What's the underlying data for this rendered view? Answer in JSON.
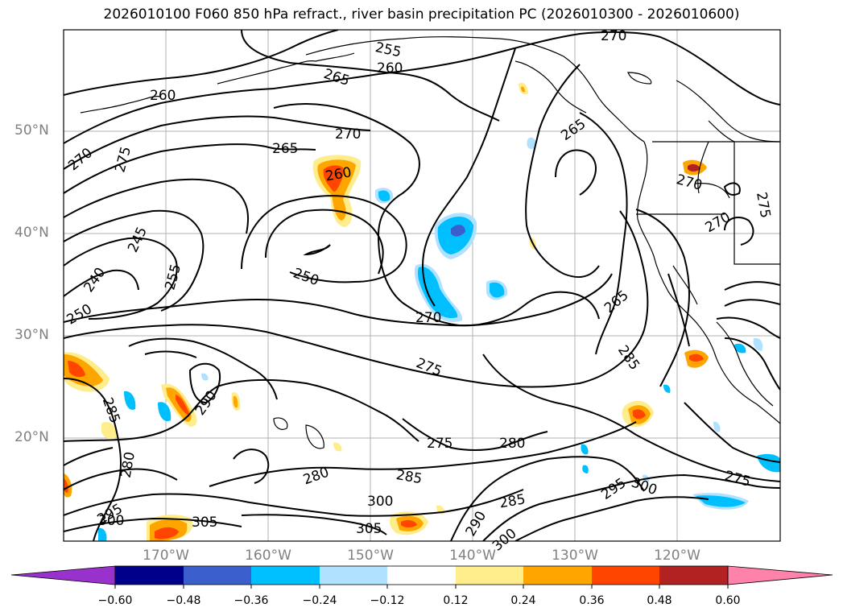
{
  "title": "2026010100 F060 850 hPa refract., river basin precipitation PC (2026010300 - 2026010600)",
  "lat_labels": [
    "50°N",
    "40°N",
    "30°N",
    "20°N"
  ],
  "lon_labels": [
    "170°W",
    "160°W",
    "150°W",
    "140°W",
    "130°W",
    "120°W"
  ],
  "contour_labels": [
    "270",
    "255",
    "260",
    "265",
    "260",
    "270",
    "265",
    "260",
    "270",
    "275",
    "245",
    "240",
    "255",
    "250",
    "250",
    "270",
    "265",
    "275",
    "285",
    "285",
    "290",
    "280",
    "275",
    "280",
    "280",
    "285",
    "295",
    "300",
    "300",
    "305",
    "305",
    "295",
    "300",
    "285",
    "290",
    "300",
    "270",
    "275",
    "275",
    "265",
    "270"
  ],
  "colorbar": {
    "ticks": [
      "−0.60",
      "−0.48",
      "−0.36",
      "−0.24",
      "−0.12",
      "0.12",
      "0.24",
      "0.36",
      "0.48",
      "0.60"
    ],
    "colors": [
      "#9932cc",
      "#00008b",
      "#3a5fcd",
      "#00bfff",
      "#b0e2ff",
      "#ffffff",
      "#ffec8b",
      "#ffa500",
      "#ff4500",
      "#b22222",
      "#ff82ab"
    ]
  }
}
